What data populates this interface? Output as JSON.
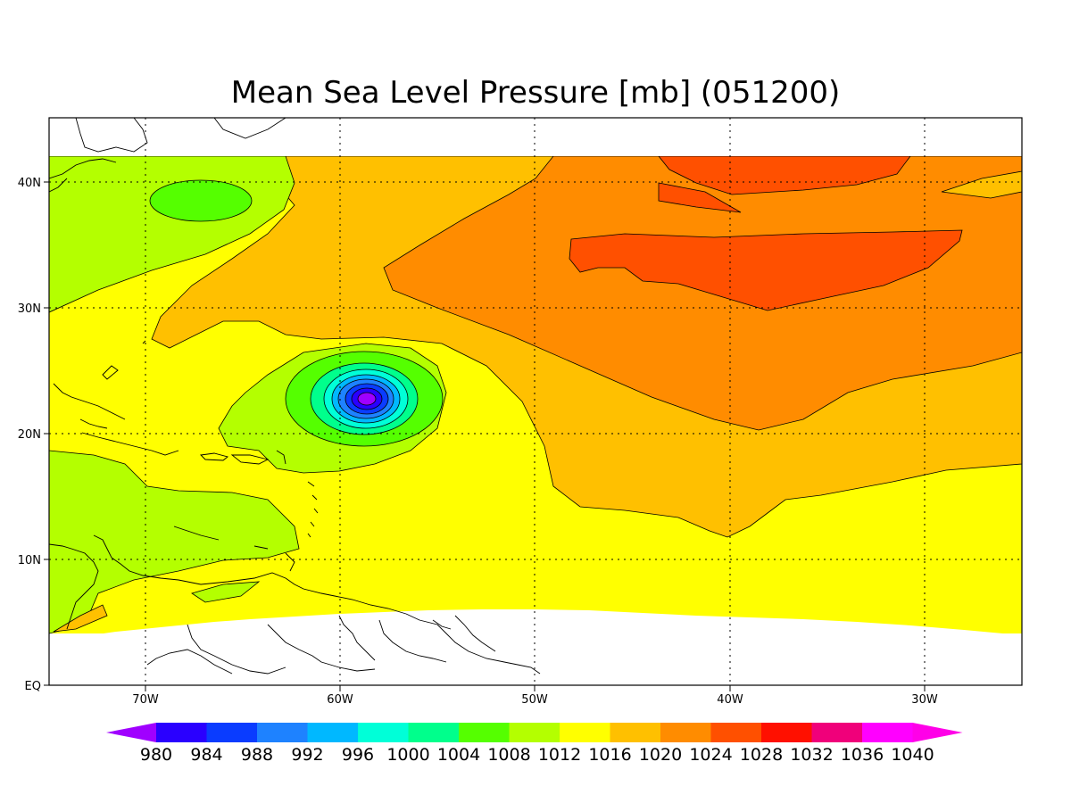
{
  "title": "Mean Sea Level Pressure [mb] (051200)",
  "map": {
    "lon_range": [
      -75,
      -25
    ],
    "lat_range": [
      0,
      45
    ],
    "lon_ticks": [
      {
        "value": -70,
        "label": "70W"
      },
      {
        "value": -60,
        "label": "60W"
      },
      {
        "value": -50,
        "label": "50W"
      },
      {
        "value": -40,
        "label": "40W"
      },
      {
        "value": -30,
        "label": "30W"
      }
    ],
    "lat_ticks": [
      {
        "value": 0,
        "label": "EQ"
      },
      {
        "value": 10,
        "label": "10N"
      },
      {
        "value": 20,
        "label": "20N"
      },
      {
        "value": 30,
        "label": "30N"
      },
      {
        "value": 40,
        "label": "40N"
      }
    ],
    "grid": "dotted",
    "storm_center": {
      "lon": -59,
      "lat": 22.5,
      "min_pressure_approx_mb": 980
    }
  },
  "colorbar": {
    "levels": [
      "980",
      "984",
      "988",
      "992",
      "996",
      "1000",
      "1004",
      "1008",
      "1012",
      "1016",
      "1020",
      "1024",
      "1028",
      "1032",
      "1036",
      "1040"
    ],
    "colors": [
      "#a000ff",
      "#2a00ff",
      "#0a3cff",
      "#1e82ff",
      "#00b8ff",
      "#00ffd8",
      "#00ff8c",
      "#55ff00",
      "#b4ff00",
      "#ffff00",
      "#ffc000",
      "#ff8c00",
      "#ff5000",
      "#ff1000",
      "#f0007a",
      "#ff00ff",
      "#ff00e8"
    ],
    "extend": "both"
  }
}
